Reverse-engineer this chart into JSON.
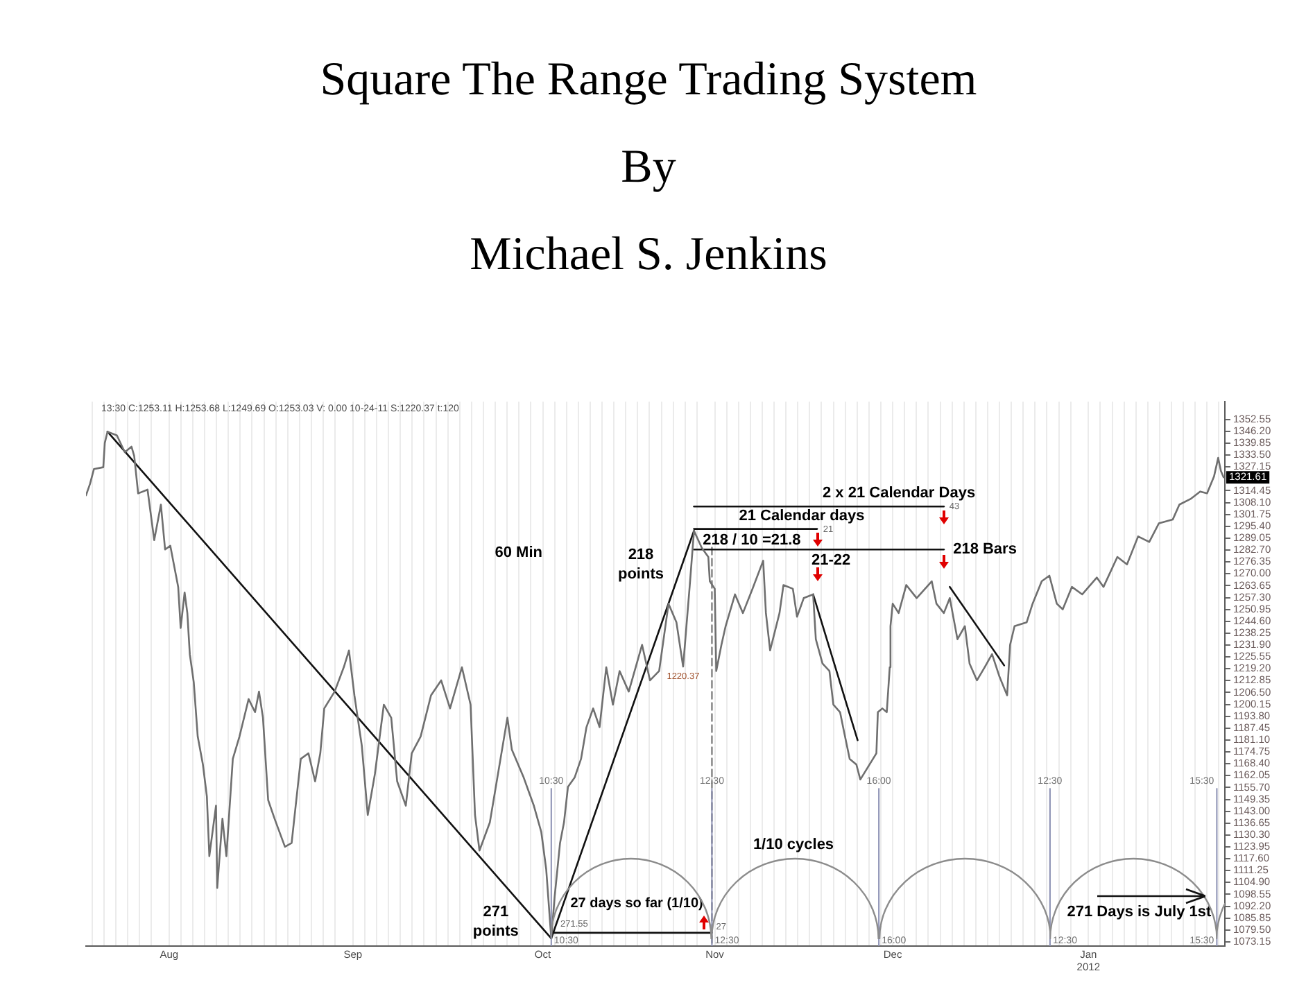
{
  "chart_data": {
    "type": "line",
    "title": "Square The Range Trading System",
    "subtitle": "By\nMichael S. Jenkins",
    "xlim": [
      "2011-07-18T00:00",
      "2012-01-26T00:00"
    ],
    "xticks": [
      {
        "value": "2011-07-19",
        "label": null
      },
      {
        "value": "2011-07-21",
        "label": null
      },
      {
        "value": "2011-07-23",
        "label": null
      },
      {
        "value": "2011-07-25",
        "label": null
      },
      {
        "value": "2011-07-27",
        "label": null
      },
      {
        "value": "2011-07-29",
        "label": null
      },
      {
        "value": "2011-08-01",
        "label": "Aug"
      },
      {
        "value": "2011-08-03",
        "label": null
      },
      {
        "value": "2011-08-05",
        "label": null
      },
      {
        "value": "2011-08-07",
        "label": null
      },
      {
        "value": "2011-08-09",
        "label": null
      },
      {
        "value": "2011-08-11",
        "label": null
      },
      {
        "value": "2011-08-13",
        "label": null
      },
      {
        "value": "2011-08-15",
        "label": null
      },
      {
        "value": "2011-08-17",
        "label": null
      },
      {
        "value": "2011-08-19",
        "label": null
      },
      {
        "value": "2011-08-21",
        "label": null
      },
      {
        "value": "2011-08-23",
        "label": null
      },
      {
        "value": "2011-08-25",
        "label": null
      },
      {
        "value": "2011-08-27",
        "label": null
      },
      {
        "value": "2011-08-29",
        "label": null
      },
      {
        "value": "2011-09-01",
        "label": "Sep"
      },
      {
        "value": "2011-09-03",
        "label": null
      },
      {
        "value": "2011-09-05",
        "label": null
      },
      {
        "value": "2011-09-07",
        "label": null
      },
      {
        "value": "2011-09-09",
        "label": null
      },
      {
        "value": "2011-09-11",
        "label": null
      },
      {
        "value": "2011-09-13",
        "label": null
      },
      {
        "value": "2011-09-15",
        "label": null
      },
      {
        "value": "2011-09-17",
        "label": null
      },
      {
        "value": "2011-09-19",
        "label": null
      },
      {
        "value": "2011-09-21",
        "label": null
      },
      {
        "value": "2011-09-23",
        "label": null
      },
      {
        "value": "2011-09-25",
        "label": null
      },
      {
        "value": "2011-09-27",
        "label": null
      },
      {
        "value": "2011-09-29",
        "label": null
      },
      {
        "value": "2011-10-01",
        "label": null
      },
      {
        "value": "2011-10-03",
        "label": "Oct"
      },
      {
        "value": "2011-10-05",
        "label": null
      },
      {
        "value": "2011-10-07",
        "label": null
      },
      {
        "value": "2011-10-09",
        "label": null
      },
      {
        "value": "2011-10-11",
        "label": null
      },
      {
        "value": "2011-10-13",
        "label": null
      },
      {
        "value": "2011-10-15",
        "label": null
      },
      {
        "value": "2011-10-17",
        "label": null
      },
      {
        "value": "2011-10-19",
        "label": null
      },
      {
        "value": "2011-10-21",
        "label": null
      },
      {
        "value": "2011-10-23",
        "label": null
      },
      {
        "value": "2011-10-25",
        "label": null
      },
      {
        "value": "2011-10-27",
        "label": null
      },
      {
        "value": "2011-10-29",
        "label": null
      },
      {
        "value": "2011-11-01",
        "label": "Nov"
      },
      {
        "value": "2011-11-03",
        "label": null
      },
      {
        "value": "2011-11-05",
        "label": null
      },
      {
        "value": "2011-11-07",
        "label": null
      },
      {
        "value": "2011-11-09",
        "label": null
      },
      {
        "value": "2011-11-11",
        "label": null
      },
      {
        "value": "2011-11-13",
        "label": null
      },
      {
        "value": "2011-11-15",
        "label": null
      },
      {
        "value": "2011-11-17",
        "label": null
      },
      {
        "value": "2011-11-19",
        "label": null
      },
      {
        "value": "2011-11-21",
        "label": null
      },
      {
        "value": "2011-11-23",
        "label": null
      },
      {
        "value": "2011-11-25",
        "label": null
      },
      {
        "value": "2011-11-27",
        "label": null
      },
      {
        "value": "2011-11-29",
        "label": null
      },
      {
        "value": "2011-12-01",
        "label": "Dec"
      },
      {
        "value": "2011-12-03",
        "label": null
      },
      {
        "value": "2011-12-05",
        "label": null
      },
      {
        "value": "2011-12-07",
        "label": null
      },
      {
        "value": "2011-12-09",
        "label": null
      },
      {
        "value": "2011-12-11",
        "label": null
      },
      {
        "value": "2011-12-13",
        "label": null
      },
      {
        "value": "2011-12-15",
        "label": null
      },
      {
        "value": "2011-12-17",
        "label": null
      },
      {
        "value": "2011-12-19",
        "label": null
      },
      {
        "value": "2011-12-21",
        "label": null
      },
      {
        "value": "2011-12-23",
        "label": null
      },
      {
        "value": "2011-12-25",
        "label": null
      },
      {
        "value": "2011-12-27",
        "label": null
      },
      {
        "value": "2011-12-29",
        "label": null
      },
      {
        "value": "2011-12-31",
        "label": null
      },
      {
        "value": "2012-01-03",
        "label": "Jan\n2012"
      },
      {
        "value": "2012-01-05",
        "label": null
      },
      {
        "value": "2012-01-07",
        "label": null
      },
      {
        "value": "2012-01-09",
        "label": null
      },
      {
        "value": "2012-01-11",
        "label": null
      },
      {
        "value": "2012-01-13",
        "label": null
      },
      {
        "value": "2012-01-15",
        "label": null
      },
      {
        "value": "2012-01-17",
        "label": null
      },
      {
        "value": "2012-01-19",
        "label": null
      },
      {
        "value": "2012-01-21",
        "label": null
      },
      {
        "value": "2012-01-23",
        "label": null
      },
      {
        "value": "2012-01-25",
        "label": null
      }
    ],
    "ylim": [
      1070.9,
      1362.1
    ],
    "yticks": [
      1073.15,
      {
        "value": 1079.5,
        "label": "1079.50"
      },
      1085.85,
      {
        "value": 1092.2,
        "label": "1092.20"
      },
      1098.55,
      {
        "value": 1104.9,
        "label": "1104.90"
      },
      1111.25,
      {
        "value": 1117.6,
        "label": "1117.60"
      },
      1123.95,
      {
        "value": 1130.3,
        "label": "1130.30"
      },
      1136.65,
      {
        "value": 1143,
        "label": "1143.00"
      },
      1149.35,
      {
        "value": 1155.7,
        "label": "1155.70"
      },
      1162.05,
      {
        "value": 1168.4,
        "label": "1168.40"
      },
      1174.75,
      {
        "value": 1181.1,
        "label": "1181.10"
      },
      1187.45,
      {
        "value": 1193.8,
        "label": "1193.80"
      },
      1200.15,
      {
        "value": 1206.5,
        "label": "1206.50"
      },
      1212.85,
      {
        "value": 1219.2,
        "label": "1219.20"
      },
      1225.55,
      {
        "value": 1231.9,
        "label": "1231.90"
      },
      1238.25,
      {
        "value": 1244.6,
        "label": "1244.60"
      },
      1250.95,
      {
        "value": 1257.3,
        "label": "1257.30"
      },
      1263.65,
      {
        "value": 1270,
        "label": "1270.00"
      },
      1276.35,
      {
        "value": 1282.7,
        "label": "1282.70"
      },
      1289.05,
      {
        "value": 1295.4,
        "label": "1295.40"
      },
      1301.75,
      {
        "value": 1308.1,
        "label": "1308.10"
      },
      1314.45,
      1327.15,
      {
        "value": 1333.5,
        "label": "1333.50"
      },
      1339.85,
      {
        "value": 1346.2,
        "label": "1346.20"
      },
      1352.55
    ],
    "grid": "x",
    "series": [
      {
        "color": "#6f6f6f",
        "x": [
          "2011-07-18T00:00",
          "2011-07-18T16:00",
          "2011-07-19T08:00",
          "2011-07-20T22:00",
          "2011-07-21T04:00",
          "2011-07-21T15:00",
          "2011-07-23T05:00",
          "2011-07-24T13:00",
          "2011-07-25T16:00",
          "2011-07-26T03:00",
          "2011-07-26T19:00",
          "2011-07-28T09:00",
          "2011-07-29T12:00",
          "2011-07-30T15:00",
          "2011-07-31T08:00",
          "2011-08-01T05:00",
          "2011-08-01T21:00",
          "2011-08-02T13:00",
          "2011-08-02T23:00",
          "2011-08-03T15:00",
          "2011-08-04T02:00",
          "2011-08-04T12:00",
          "2011-08-05T04:00",
          "2011-08-05T20:00",
          "2011-08-06T17:00",
          "2011-08-07T09:00",
          "2011-08-07T19:00",
          "2011-08-08T22:00",
          "2011-08-09T03:00",
          "2011-08-10T00:00",
          "2011-08-10T16:00",
          "2011-08-11T18:00",
          "2011-08-12T21:00",
          "2011-08-14T10:00",
          "2011-08-15T12:00",
          "2011-08-16T04:00",
          "2011-08-16T20:00",
          "2011-08-17T17:00",
          "2011-08-18T19:00",
          "2011-08-20T13:00",
          "2011-08-21T16:00",
          "2011-08-23T05:00",
          "2011-08-24T12:00",
          "2011-08-25T15:00",
          "2011-08-26T12:00",
          "2011-08-27T04:00",
          "2011-08-28T22:00",
          "2011-08-30T11:00",
          "2011-08-31T08:00",
          "2011-09-01T06:00",
          "2011-09-02T12:00",
          "2011-09-03T12:00",
          "2011-09-04T17:00",
          "2011-09-06T05:00",
          "2011-09-07T11:00",
          "2011-09-08T11:00",
          "2011-09-09T22:00",
          "2011-09-10T22:00",
          "2011-09-12T10:00",
          "2011-09-14T04:00",
          "2011-09-15T21:00",
          "2011-09-17T09:00",
          "2011-09-19T09:00",
          "2011-09-20T20:00",
          "2011-09-21T14:00",
          "2011-09-22T08:00",
          "2011-09-24T02:00",
          "2011-09-27T01:00",
          "2011-09-27T19:00",
          "2011-09-29T19:00",
          "2011-10-01T12:00",
          "2011-10-02T18:00",
          "2011-10-03T14:00",
          "2011-10-04T10:30",
          "2011-10-05T00:00",
          "2011-10-05T22:00",
          "2011-10-06T14:00",
          "2011-10-07T06:00",
          "2011-10-08T09:00",
          "2011-10-09T11:00",
          "2011-10-10T09:00",
          "2011-10-11T12:00",
          "2011-10-12T14:00",
          "2011-10-13T17:00",
          "2011-10-14T20:00",
          "2011-10-15T23:00",
          "2011-10-17T12:00",
          "2011-10-19T18:00",
          "2011-10-21T02:00",
          "2011-10-22T15:00",
          "2011-10-24T05:00",
          "2011-10-25T13:00",
          "2011-10-26T16:00",
          "2011-10-27T19:00",
          "2011-10-28T12:00",
          "2011-10-29T19:00",
          "2011-10-30T22:00",
          "2011-10-31T04:00",
          "2011-11-01T00:00",
          "2011-11-01T06:00",
          "2011-11-02T03:00",
          "2011-11-02T20:00",
          "2011-11-04T10:00",
          "2011-11-05T18:00",
          "2011-11-07T09:00",
          "2011-11-09T04:00",
          "2011-11-09T15:00",
          "2011-11-10T08:00",
          "2011-11-11T22:00",
          "2011-11-12T14:00",
          "2011-11-14T04:00",
          "2011-11-14T21:00",
          "2011-11-16T00:00",
          "2011-11-17T14:00",
          "2011-11-18T01:00",
          "2011-11-19T04:00",
          "2011-11-20T08:00",
          "2011-11-21T00:00",
          "2011-11-22T03:00",
          "2011-11-22T20:00",
          "2011-11-23T18:00",
          "2011-11-24T21:00",
          "2011-11-25T13:00",
          "2011-11-28T06:00",
          "2011-11-28T12:00",
          "2011-11-29T06:00",
          "2011-11-30T00:00",
          "2011-11-30T12:00",
          "2011-11-30T15:00",
          "2011-12-01T00:00",
          "2011-12-02T00:00",
          "2011-12-03T07:00",
          "2011-12-05T01:00",
          "2011-12-07T14:00",
          "2011-12-08T09:00",
          "2011-12-09T15:00",
          "2011-12-10T15:00",
          "2011-12-11T22:00",
          "2011-12-13T04:00",
          "2011-12-13T23:00",
          "2011-12-15T05:00",
          "2011-12-16T12:00",
          "2011-12-17T18:00",
          "2011-12-19T00:00",
          "2011-12-20T07:00",
          "2011-12-20T19:00",
          "2011-12-21T13:00",
          "2011-12-23T14:00",
          "2011-12-24T14:00",
          "2011-12-26T03:00",
          "2011-12-27T10:00",
          "2011-12-28T16:00",
          "2011-12-29T16:00",
          "2011-12-31T05:00",
          "2012-01-01T23:00",
          "2012-01-04T10:00",
          "2012-01-05T13:00",
          "2012-01-07T21:00",
          "2012-01-09T12:00",
          "2012-01-11T09:00",
          "2012-01-13T06:00",
          "2012-01-14T21:00",
          "2012-01-17T05:00",
          "2012-01-18T08:00",
          "2012-01-20T05:00",
          "2012-01-21T20:00",
          "2012-01-23T00:00",
          "2012-01-24T04:00",
          "2012-01-24T21:00",
          "2012-01-25T08:00",
          "2012-01-25T19:00"
        ],
        "values": [
          1312,
          1318,
          1326,
          1327,
          1340,
          1346,
          1344,
          1335,
          1338,
          1333,
          1313,
          1315,
          1288,
          1307,
          1283,
          1285,
          1274,
          1263,
          1241,
          1260,
          1249,
          1227,
          1212,
          1183,
          1168,
          1151,
          1119,
          1146,
          1102,
          1139,
          1119,
          1171,
          1183,
          1203,
          1196,
          1207,
          1193,
          1149,
          1139,
          1124,
          1126,
          1171,
          1174,
          1159,
          1174,
          1198,
          1207,
          1220,
          1229,
          1205,
          1178,
          1141,
          1163,
          1200,
          1193,
          1159,
          1146,
          1174,
          1183,
          1205,
          1213,
          1198,
          1220,
          1200,
          1141,
          1122,
          1137,
          1193,
          1176,
          1161,
          1146,
          1132,
          1112,
          1075,
          1097,
          1126,
          1137,
          1156,
          1161,
          1171,
          1188,
          1198,
          1188,
          1220,
          1200,
          1218,
          1207,
          1232,
          1213,
          1218,
          1254,
          1244,
          1220.37,
          1264,
          1293,
          1284,
          1279,
          1266,
          1262,
          1218,
          1232,
          1242,
          1259,
          1249,
          1262,
          1277,
          1249,
          1229,
          1249,
          1264,
          1262,
          1247,
          1257,
          1259,
          1235,
          1222,
          1218,
          1200,
          1196,
          1185,
          1171,
          1168,
          1160,
          1174,
          1196,
          1198,
          1196,
          1220,
          1242,
          1254,
          1249,
          1264,
          1257,
          1266,
          1254,
          1249,
          1257,
          1235,
          1242,
          1222,
          1213,
          1220,
          1227,
          1215,
          1205,
          1232,
          1242,
          1244,
          1254,
          1266,
          1269,
          1254,
          1251,
          1263,
          1259,
          1268,
          1263,
          1279,
          1275,
          1290,
          1287,
          1297,
          1299,
          1307,
          1310,
          1314,
          1313,
          1322,
          1332,
          1325,
          1321.61
        ],
        "value_labels": [
          null,
          null,
          null,
          null,
          null,
          null,
          null,
          null,
          null,
          null,
          null,
          null,
          null,
          null,
          null,
          null,
          null,
          null,
          null,
          null,
          null,
          null,
          null,
          null,
          null,
          null,
          null,
          null,
          null,
          null,
          null,
          null,
          null,
          null,
          null,
          null,
          null,
          null,
          null,
          null,
          null,
          null,
          null,
          null,
          null,
          null,
          null,
          null,
          null,
          null,
          null,
          null,
          null,
          null,
          null,
          null,
          null,
          null,
          null,
          null,
          null,
          null,
          null,
          null,
          null,
          null,
          null,
          null,
          null,
          null,
          null,
          null,
          null,
          null,
          null,
          null,
          null,
          null,
          null,
          null,
          null,
          null,
          null,
          null,
          null,
          null,
          null,
          null,
          null,
          null,
          null,
          null,
          "1220.37",
          null,
          null,
          null,
          null,
          null,
          null,
          null,
          null,
          null,
          null,
          null,
          null,
          null,
          null,
          null,
          null,
          null,
          null,
          null,
          null,
          null,
          null,
          null,
          null,
          null,
          null,
          null,
          null,
          null,
          null,
          null,
          null,
          null,
          null,
          null,
          null,
          null,
          null,
          null,
          null,
          null,
          null,
          null,
          null,
          null,
          null,
          null,
          null,
          null,
          null,
          null,
          null,
          null,
          null,
          null,
          null,
          null,
          null,
          null,
          null,
          null,
          null,
          null,
          null,
          null,
          null,
          null,
          null,
          null,
          null,
          null,
          null,
          null,
          null,
          null,
          null,
          null,
          "1321.61"
        ]
      },
      {
        "color": "#111111",
        "x": [
          "2011-07-21T15:00",
          "2011-10-04T10:30"
        ],
        "values": [
          1346,
          1075
        ]
      },
      {
        "color": "#111111",
        "x": [
          "2011-10-04T10:30",
          "2011-10-28T12:00"
        ],
        "values": [
          1075,
          1293
        ]
      },
      {
        "color": "#111111",
        "x": [
          "2011-11-17T14:00",
          "2011-11-25T02:00"
        ],
        "values": [
          1259,
          1181
        ]
      },
      {
        "color": "#111111",
        "x": [
          "2011-12-10T15:00",
          "2011-12-19T19:00"
        ],
        "values": [
          1263,
          1221
        ]
      },
      {
        "color": "#111111",
        "x": [
          "2011-10-04T10:30",
          "2011-10-31T12:30"
        ],
        "values": [
          1078,
          1078
        ]
      },
      {
        "color": "#111111",
        "x": [
          "2011-10-28T12:00",
          "2011-12-09T15:00"
        ],
        "values": [
          1306,
          1306
        ]
      },
      {
        "color": "#111111",
        "x": [
          "2011-10-28T12:00",
          "2011-11-18T06:00"
        ],
        "values": [
          1294,
          1294
        ]
      },
      {
        "color": "#111111",
        "x": [
          "2011-10-28T12:00",
          "2011-12-09T15:00"
        ],
        "values": [
          1283,
          1283
        ]
      },
      {
        "color": "#8c8c8c",
        "x": [
          "2011-10-31T12:30",
          "2011-10-31T12:30"
        ],
        "values": [
          1284,
          1071
        ],
        "line_style": "dashed"
      }
    ],
    "ref_lines": [
      {
        "axis": "x",
        "value": "2011-10-04T10:30",
        "label": "10:30",
        "color": "#8a8fb2"
      },
      {
        "axis": "x",
        "value": "2011-10-31T12:30",
        "label": "12:30",
        "color": "#8a8fb2"
      },
      {
        "axis": "x",
        "value": "2011-11-28T16:00",
        "label": "16:00",
        "color": "#8a8fb2"
      },
      {
        "axis": "x",
        "value": "2011-12-27T12:30",
        "label": "12:30",
        "color": "#8a8fb2"
      },
      {
        "axis": "x",
        "value": "2012-01-24T15:30",
        "label": "15:30",
        "color": "#8a8fb2"
      }
    ],
    "annotations": [
      "13:30 C:1253.11 H:1253.68 L:1249.69 O:1253.03 V: 0.00 10-24-11 S:1220.37 t:120",
      "60 Min",
      "271\npoints",
      "218\npoints",
      "2 x 21 Calendar Days",
      "21 Calendar days",
      "218 / 10 =21.8",
      "218 Bars",
      "21-22",
      "27 days so far (1/10)",
      "1/10 cycles",
      {
        "text": "271 Days is July 1st",
        "x": "2012-01-24T15:30",
        "y": 1096
      },
      "271.55",
      {
        "text": "27",
        "x": "2011-10-31T12:30",
        "y": 1078
      },
      "21",
      "43"
    ]
  }
}
